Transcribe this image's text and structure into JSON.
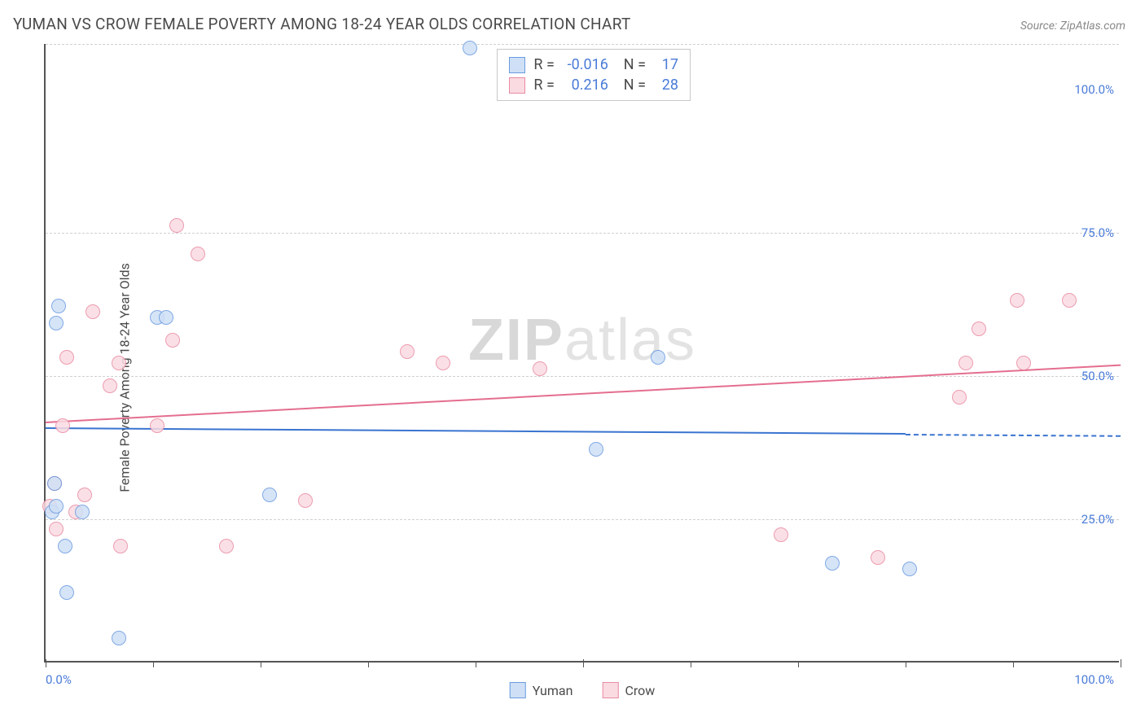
{
  "header": {
    "title": "YUMAN VS CROW FEMALE POVERTY AMONG 18-24 YEAR OLDS CORRELATION CHART",
    "source": "Source: ZipAtlas.com"
  },
  "chart": {
    "type": "scatter",
    "ylabel": "Female Poverty Among 18-24 Year Olds",
    "xlim": [
      0,
      100
    ],
    "ylim": [
      0,
      108
    ],
    "background_color": "#ffffff",
    "grid_color": "#d0d0d0",
    "axis_color": "#555555",
    "tick_label_color": "#4a7bd8",
    "marker_radius": 9,
    "marker_stroke_width": 1,
    "gridlines_y": [
      25,
      50,
      75,
      108
    ],
    "xticks_minor": [
      10,
      20,
      30,
      40,
      60,
      70,
      80,
      90
    ],
    "xticks_major": [
      0,
      50,
      100
    ],
    "ytick_labels": [
      {
        "y": 25,
        "label": "25.0%"
      },
      {
        "y": 50,
        "label": "50.0%"
      },
      {
        "y": 75,
        "label": "75.0%"
      },
      {
        "y": 100,
        "label": "100.0%"
      }
    ],
    "xtick_labels": [
      {
        "x": 0,
        "label": "0.0%"
      },
      {
        "x": 100,
        "label": "100.0%"
      }
    ],
    "series": {
      "yuman": {
        "label": "Yuman",
        "fill": "#cfe0f6",
        "stroke": "#6a9be0",
        "trend_color": "#3a74d0",
        "R": "-0.016",
        "N": "17",
        "trend": {
          "x0": 0,
          "y0": 41,
          "x1": 80,
          "y1": 40,
          "dash_to_x": 100
        },
        "points": [
          {
            "x": 1.2,
            "y": 62
          },
          {
            "x": 1.0,
            "y": 59
          },
          {
            "x": 10.4,
            "y": 60
          },
          {
            "x": 11.2,
            "y": 60
          },
          {
            "x": 0.8,
            "y": 31
          },
          {
            "x": 0.6,
            "y": 26
          },
          {
            "x": 3.4,
            "y": 26
          },
          {
            "x": 1.8,
            "y": 20
          },
          {
            "x": 2.0,
            "y": 12
          },
          {
            "x": 6.8,
            "y": 4
          },
          {
            "x": 20.8,
            "y": 29
          },
          {
            "x": 39.5,
            "y": 107
          },
          {
            "x": 51.2,
            "y": 37
          },
          {
            "x": 57.0,
            "y": 53
          },
          {
            "x": 73.2,
            "y": 17
          },
          {
            "x": 80.4,
            "y": 16
          },
          {
            "x": 1.0,
            "y": 27
          }
        ]
      },
      "crow": {
        "label": "Crow",
        "fill": "#fadbe2",
        "stroke": "#e98ba3",
        "trend_color": "#e46e8f",
        "R": "0.216",
        "N": "28",
        "trend": {
          "x0": 0,
          "y0": 42,
          "x1": 100,
          "y1": 52
        },
        "points": [
          {
            "x": 0.4,
            "y": 27
          },
          {
            "x": 0.8,
            "y": 31
          },
          {
            "x": 1.0,
            "y": 23
          },
          {
            "x": 1.6,
            "y": 41
          },
          {
            "x": 2.0,
            "y": 53
          },
          {
            "x": 4.4,
            "y": 61
          },
          {
            "x": 6.0,
            "y": 48
          },
          {
            "x": 6.8,
            "y": 52
          },
          {
            "x": 7.0,
            "y": 20
          },
          {
            "x": 10.4,
            "y": 41
          },
          {
            "x": 11.8,
            "y": 56
          },
          {
            "x": 12.2,
            "y": 76
          },
          {
            "x": 14.2,
            "y": 71
          },
          {
            "x": 16.8,
            "y": 20
          },
          {
            "x": 24.2,
            "y": 28
          },
          {
            "x": 33.6,
            "y": 54
          },
          {
            "x": 37.0,
            "y": 52
          },
          {
            "x": 46.0,
            "y": 51
          },
          {
            "x": 68.4,
            "y": 22
          },
          {
            "x": 77.4,
            "y": 18
          },
          {
            "x": 85.6,
            "y": 52
          },
          {
            "x": 85.0,
            "y": 46
          },
          {
            "x": 86.8,
            "y": 58
          },
          {
            "x": 90.4,
            "y": 63
          },
          {
            "x": 91.0,
            "y": 52
          },
          {
            "x": 95.2,
            "y": 63
          },
          {
            "x": 3.6,
            "y": 29
          },
          {
            "x": 2.8,
            "y": 26
          }
        ]
      }
    },
    "watermark": {
      "part1": "ZIP",
      "part2": "atlas"
    }
  }
}
